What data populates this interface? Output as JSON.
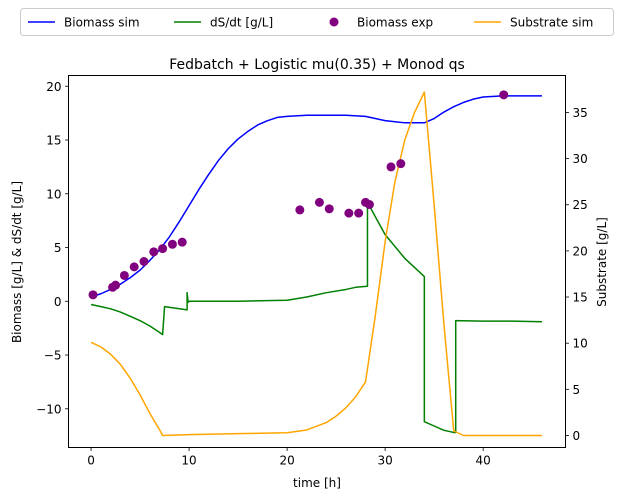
{
  "chart_data": {
    "type": "line",
    "title": "Fedbatch + Logistic mu(0.35) + Monod qs",
    "xlabel": "time [h]",
    "ylabel_left": "Biomass [g/L] & dS/dt [g/L]",
    "ylabel_right": "Substrate [g/L]",
    "xlim": [
      -2.3,
      48.4
    ],
    "ylim_left": [
      -13.6,
      21.0
    ],
    "ylim_right": [
      -1.3,
      39.0
    ],
    "x_ticks": [
      0,
      10,
      20,
      30,
      40
    ],
    "y_left_ticks": [
      -10,
      -5,
      0,
      5,
      10,
      15,
      20
    ],
    "y_right_ticks": [
      0,
      5,
      10,
      15,
      20,
      25,
      30,
      35
    ],
    "grid": false,
    "legend_placement": "top, outside, 4 columns",
    "series": [
      {
        "name": "Biomass sim",
        "kind": "line",
        "axis": "left",
        "color": "#0000ff",
        "x": [
          0,
          1,
          2,
          3,
          4,
          5,
          6,
          7,
          8,
          9,
          10,
          11,
          12,
          13,
          14,
          15,
          16,
          17,
          18,
          19,
          20,
          22,
          24,
          26,
          28,
          29,
          30,
          31,
          32,
          33,
          34,
          35,
          36,
          37,
          38,
          39,
          40,
          42,
          44,
          46
        ],
        "y": [
          0.4,
          0.7,
          1.1,
          1.6,
          2.2,
          2.9,
          3.8,
          4.8,
          6.0,
          7.4,
          8.9,
          10.4,
          11.8,
          13.1,
          14.2,
          15.1,
          15.8,
          16.4,
          16.8,
          17.1,
          17.2,
          17.3,
          17.3,
          17.3,
          17.2,
          17.0,
          16.8,
          16.7,
          16.6,
          16.6,
          16.6,
          17.0,
          17.6,
          18.1,
          18.5,
          18.8,
          19.0,
          19.1,
          19.1,
          19.1
        ]
      },
      {
        "name": "dS/dt [g/L]",
        "kind": "line",
        "axis": "left",
        "color": "#008000",
        "x": [
          0,
          1,
          2,
          3,
          4,
          5,
          6,
          7,
          7.3,
          7.5,
          9.8,
          9.8,
          9.9,
          10,
          15,
          20,
          22,
          24,
          26,
          27,
          28.2,
          28.2,
          30,
          32,
          34,
          34,
          35,
          36,
          37,
          37.2,
          37.2,
          40,
          43,
          46
        ],
        "y": [
          -0.3,
          -0.5,
          -0.7,
          -1.0,
          -1.4,
          -1.8,
          -2.3,
          -2.9,
          -3.1,
          -0.5,
          -0.8,
          0.8,
          -0.1,
          0.0,
          0.0,
          0.1,
          0.4,
          0.8,
          1.1,
          1.3,
          1.4,
          9.2,
          6.2,
          4.0,
          2.3,
          -11.2,
          -11.6,
          -12.0,
          -12.2,
          -12.2,
          -1.8,
          -1.85,
          -1.85,
          -1.9
        ]
      },
      {
        "name": "Substrate sim",
        "kind": "line",
        "axis": "right",
        "color": "#ffa500",
        "x": [
          0,
          1,
          2,
          3,
          4,
          5,
          6,
          7,
          7.3,
          10,
          15,
          20,
          22,
          24,
          25,
          26,
          27,
          28,
          29,
          30,
          31,
          32,
          33,
          34,
          35,
          36,
          37,
          38,
          40,
          46
        ],
        "y": [
          10.1,
          9.6,
          8.8,
          7.7,
          6.2,
          4.4,
          2.4,
          0.6,
          0.0,
          0.1,
          0.2,
          0.3,
          0.6,
          1.4,
          2.1,
          3.0,
          4.2,
          5.8,
          13.0,
          21.0,
          27.5,
          32.0,
          35.0,
          37.2,
          25.0,
          12.0,
          0.5,
          0.0,
          0.0,
          0.0
        ]
      },
      {
        "name": "Biomass exp",
        "kind": "scatter",
        "axis": "left",
        "color": "#800080",
        "x": [
          0.2,
          2.2,
          2.5,
          3.4,
          4.4,
          5.4,
          6.4,
          7.3,
          8.3,
          9.3,
          21.3,
          23.3,
          24.3,
          26.3,
          27.3,
          28.0,
          28.4,
          30.6,
          31.6,
          42.1
        ],
        "y": [
          0.6,
          1.3,
          1.5,
          2.4,
          3.2,
          3.7,
          4.6,
          4.9,
          5.3,
          5.5,
          8.5,
          9.2,
          8.6,
          8.2,
          8.2,
          9.2,
          9.0,
          12.5,
          12.8,
          19.2
        ]
      }
    ],
    "legend": [
      {
        "label": "Biomass sim",
        "marker": "line",
        "color": "#0000ff"
      },
      {
        "label": "dS/dt [g/L]",
        "marker": "line",
        "color": "#008000"
      },
      {
        "label": "Biomass exp",
        "marker": "dot",
        "color": "#800080"
      },
      {
        "label": "Substrate sim",
        "marker": "line",
        "color": "#ffa500"
      }
    ]
  }
}
